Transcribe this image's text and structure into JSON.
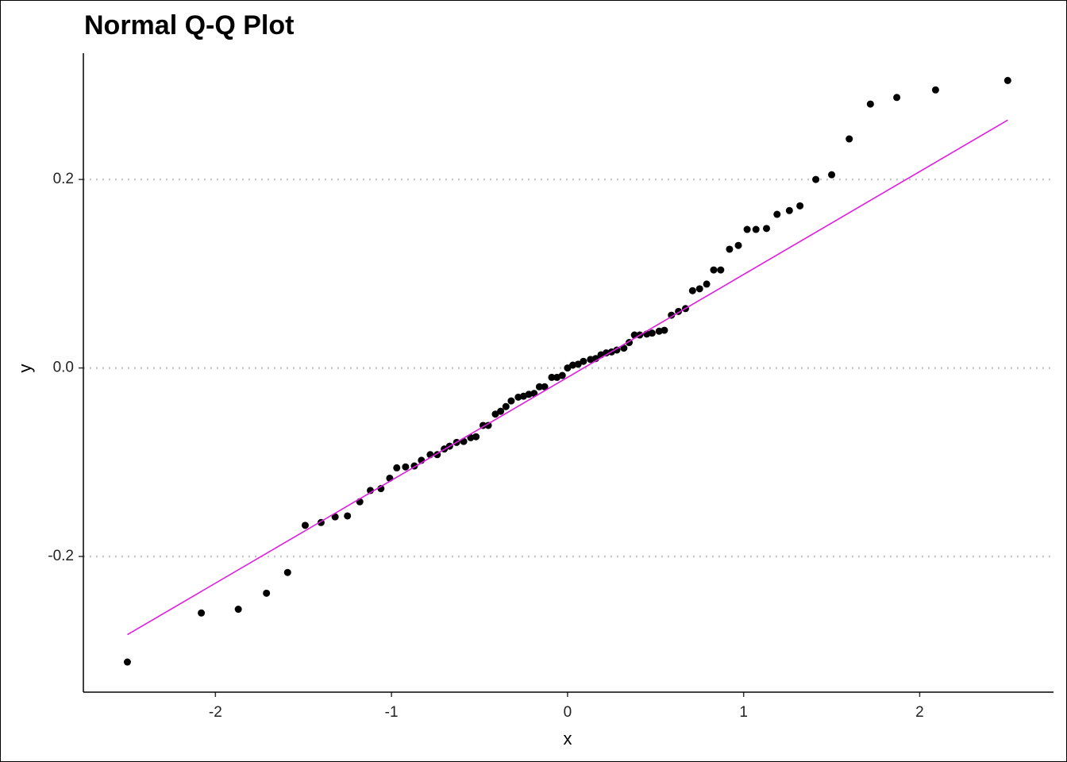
{
  "chart_data": {
    "type": "scatter",
    "title": "Normal Q-Q Plot",
    "xlabel": "x",
    "ylabel": "y",
    "color": "#000000",
    "grid": "y",
    "xlim": [
      -2.75,
      2.76
    ],
    "ylim": [
      -0.344,
      0.334
    ],
    "xticks": [
      -2,
      -1,
      0,
      1,
      2
    ],
    "yticks": [
      -0.2,
      {
        "value": 0,
        "label": "0.0"
      },
      0.2
    ],
    "x": [
      -2.5,
      -2.08,
      -1.87,
      -1.71,
      -1.59,
      -1.49,
      -1.4,
      -1.32,
      -1.25,
      -1.18,
      -1.12,
      -1.06,
      -1.01,
      -0.97,
      -0.92,
      -0.87,
      -0.83,
      -0.78,
      -0.74,
      -0.7,
      -0.67,
      -0.63,
      -0.59,
      -0.55,
      -0.52,
      -0.48,
      -0.45,
      -0.41,
      -0.38,
      -0.35,
      -0.32,
      -0.28,
      -0.25,
      -0.22,
      -0.19,
      -0.16,
      -0.13,
      -0.09,
      -0.06,
      -0.03,
      0.0,
      0.03,
      0.06,
      0.09,
      0.13,
      0.16,
      0.19,
      0.22,
      0.25,
      0.28,
      0.32,
      0.35,
      0.38,
      0.41,
      0.45,
      0.48,
      0.52,
      0.55,
      0.59,
      0.63,
      0.67,
      0.71,
      0.75,
      0.79,
      0.83,
      0.87,
      0.92,
      0.97,
      1.02,
      1.07,
      1.13,
      1.19,
      1.26,
      1.32,
      1.41,
      1.5,
      1.6,
      1.72,
      1.87,
      2.09,
      2.5
    ],
    "values": [
      -0.312,
      -0.26,
      -0.256,
      -0.239,
      -0.217,
      -0.167,
      -0.164,
      -0.158,
      -0.157,
      -0.142,
      -0.13,
      -0.128,
      -0.117,
      -0.106,
      -0.105,
      -0.104,
      -0.098,
      -0.092,
      -0.092,
      -0.086,
      -0.083,
      -0.079,
      -0.078,
      -0.074,
      -0.073,
      -0.061,
      -0.061,
      -0.049,
      -0.046,
      -0.041,
      -0.035,
      -0.031,
      -0.03,
      -0.028,
      -0.027,
      -0.02,
      -0.02,
      -0.01,
      -0.01,
      -0.008,
      0.0,
      0.003,
      0.004,
      0.007,
      0.009,
      0.01,
      0.014,
      0.016,
      0.017,
      0.019,
      0.021,
      0.027,
      0.035,
      0.035,
      0.036,
      0.037,
      0.039,
      0.04,
      0.056,
      0.06,
      0.063,
      0.082,
      0.084,
      0.089,
      0.104,
      0.104,
      0.126,
      0.13,
      0.147,
      0.147,
      0.148,
      0.163,
      0.167,
      0.172,
      0.2,
      0.205,
      0.243,
      0.28,
      0.287,
      0.295,
      0.305
    ],
    "line": {
      "x": [
        -2.5,
        2.5
      ],
      "y": [
        -0.283,
        0.263
      ],
      "color": "#e01ee0"
    }
  }
}
